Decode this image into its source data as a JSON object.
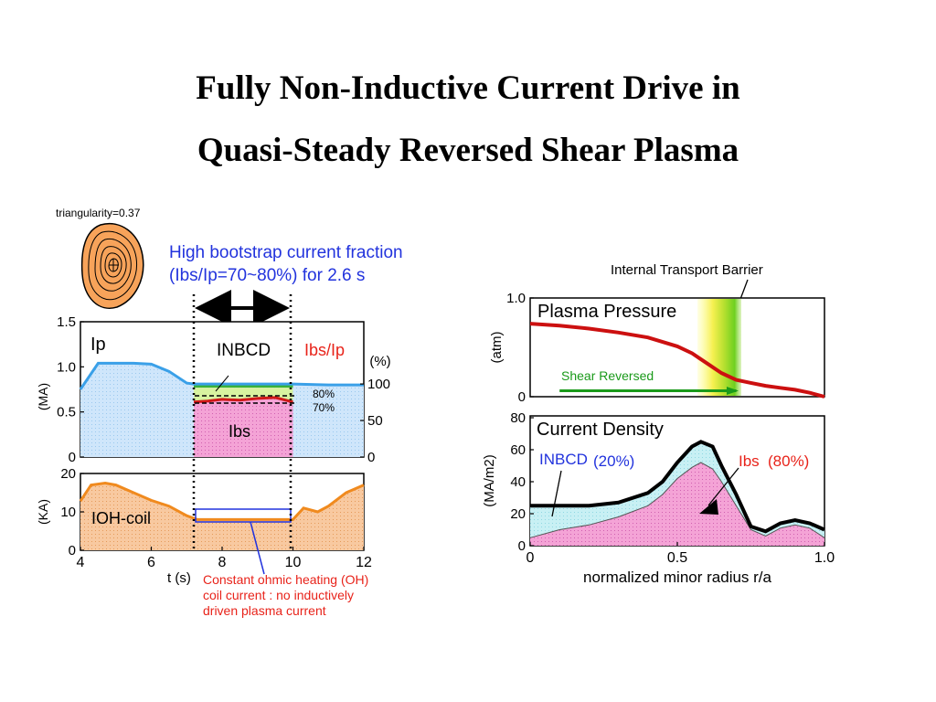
{
  "slide": {
    "title_line1": "Fully Non-Inductive Current Drive in",
    "title_line2": "Quasi-Steady Reversed Shear Plasma"
  },
  "left_figure": {
    "triangularity_label": "triangularity=0.37",
    "annotation_blue_line1": "High bootstrap current fraction",
    "annotation_blue_line2": "(Ibs/Ip=70~80%) for 2.6 s",
    "annotation_red_line1": "Constant ohmic heating (OH)",
    "annotation_red_line2": "coil current : no inductively",
    "annotation_red_line3": "driven plasma current",
    "colors": {
      "ip": "#3aa0e8",
      "nbcd": "#2ca02c",
      "bs": "#e0209a",
      "ratio": "#e8231a",
      "oh": "#f08a1e",
      "blue_text": "#2233dd",
      "red_text": "#e8231a"
    }
  },
  "chart_data": [
    {
      "type": "area",
      "id": "plasma-current",
      "ylabel": "(MA)",
      "y2label": "(%)",
      "ylim": [
        0,
        1.5
      ],
      "y_ticks": [
        "0",
        "0.5",
        "1.0",
        "1.5"
      ],
      "y2_ticks": [
        "0",
        "50",
        "100"
      ],
      "xlim": [
        4,
        12
      ],
      "labels": {
        "ip": "Ip",
        "nbcd": "INBCD",
        "ratio": "Ibs/Ip",
        "bs": "Ibs",
        "pct80": "80%",
        "pct70": "70%"
      },
      "series": [
        {
          "name": "Ip",
          "x": [
            4.0,
            4.5,
            5.0,
            5.5,
            6.0,
            6.5,
            7.0,
            7.2,
            8.0,
            9.0,
            10.0,
            11.0,
            12.0
          ],
          "values": [
            0.75,
            1.04,
            1.04,
            1.04,
            1.03,
            0.95,
            0.82,
            0.81,
            0.81,
            0.81,
            0.81,
            0.8,
            0.8
          ]
        },
        {
          "name": "Ibs",
          "x": [
            7.2,
            7.6,
            8.0,
            8.5,
            9.0,
            9.5,
            10.0
          ],
          "values": [
            0.61,
            0.62,
            0.64,
            0.63,
            0.65,
            0.66,
            0.61
          ]
        }
      ]
    },
    {
      "type": "area",
      "id": "oh-coil-current",
      "ylabel": "(KA)",
      "xlabel": "t (s)",
      "ylim": [
        0,
        20
      ],
      "y_ticks": [
        "0",
        "10",
        "20"
      ],
      "xlim": [
        4,
        12
      ],
      "x_ticks": [
        "4",
        "6",
        "8",
        "10",
        "12"
      ],
      "series_label": "IOH-coil",
      "series": [
        {
          "name": "IOH-coil",
          "x": [
            4.0,
            4.3,
            4.7,
            5.0,
            5.5,
            6.0,
            6.5,
            7.0,
            7.3,
            8.0,
            9.0,
            10.0,
            10.3,
            10.7,
            11.0,
            11.5,
            12.0
          ],
          "values": [
            12.8,
            17.0,
            17.5,
            17.0,
            15.0,
            13.0,
            11.5,
            9.0,
            8.0,
            8.0,
            8.0,
            8.0,
            11.0,
            10.0,
            11.5,
            15.0,
            17.0
          ]
        }
      ]
    },
    {
      "type": "line",
      "id": "plasma-pressure",
      "title": "Plasma Pressure",
      "ylabel": "(atm)",
      "ylim": [
        0,
        1.0
      ],
      "y_ticks": [
        "0",
        "1.0"
      ],
      "xlim": [
        0,
        1.0
      ],
      "itb_label": "Internal Transport Barrier",
      "shear_label": "Shear Reversed",
      "series": [
        {
          "name": "Plasma Pressure",
          "x": [
            0.0,
            0.1,
            0.2,
            0.3,
            0.4,
            0.5,
            0.55,
            0.6,
            0.65,
            0.7,
            0.75,
            0.8,
            0.85,
            0.9,
            0.95,
            1.0
          ],
          "values": [
            0.74,
            0.72,
            0.69,
            0.65,
            0.6,
            0.51,
            0.44,
            0.34,
            0.24,
            0.17,
            0.14,
            0.11,
            0.09,
            0.07,
            0.04,
            0.0
          ]
        },
        {
          "name": "Shear Reversed",
          "x": [
            0.1,
            0.7
          ],
          "values": [
            0.06,
            0.06
          ]
        }
      ]
    },
    {
      "type": "area",
      "id": "current-density",
      "title": "Current Density",
      "ylabel": "(MA/m2)",
      "xlabel": "normalized minor radius r/a",
      "ylim": [
        0,
        80
      ],
      "y_ticks": [
        "0",
        "20",
        "40",
        "60",
        "80"
      ],
      "xlim": [
        0,
        1.0
      ],
      "x_ticks": [
        "0",
        "0.5",
        "1.0"
      ],
      "label_nbcd": "INBCD",
      "label_nbcd_pct": "(20%)",
      "label_bs": "Ibs",
      "label_bs_pct": "(80%)",
      "series": [
        {
          "name": "total",
          "x": [
            0.0,
            0.1,
            0.2,
            0.3,
            0.4,
            0.45,
            0.5,
            0.55,
            0.58,
            0.62,
            0.65,
            0.7,
            0.75,
            0.8,
            0.85,
            0.9,
            0.95,
            1.0
          ],
          "values": [
            25,
            25,
            25,
            27,
            33,
            40,
            52,
            62,
            65,
            62,
            50,
            32,
            12,
            9,
            14,
            16,
            14,
            10
          ]
        },
        {
          "name": "Ibs",
          "x": [
            0.0,
            0.1,
            0.2,
            0.3,
            0.4,
            0.45,
            0.5,
            0.55,
            0.58,
            0.62,
            0.65,
            0.7,
            0.75,
            0.8,
            0.85,
            0.9,
            0.95,
            1.0
          ],
          "values": [
            5,
            10,
            13,
            18,
            25,
            32,
            42,
            49,
            52,
            48,
            40,
            25,
            10,
            6,
            11,
            13,
            11,
            5
          ]
        }
      ]
    }
  ]
}
